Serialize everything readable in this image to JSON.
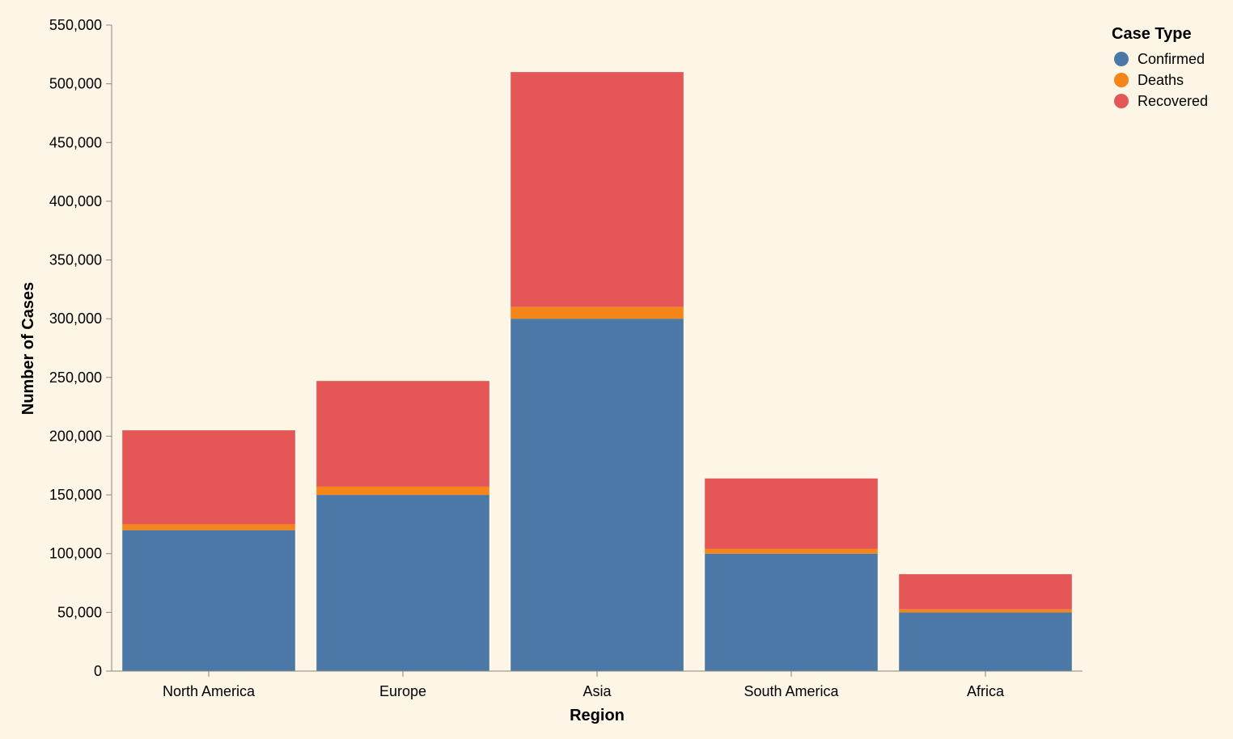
{
  "chart_data": {
    "type": "bar",
    "stacked": true,
    "categories": [
      "North America",
      "Europe",
      "Asia",
      "South America",
      "Africa"
    ],
    "series": [
      {
        "name": "Confirmed",
        "values": [
          120000,
          150000,
          300000,
          100000,
          50000
        ],
        "color": "#4c78a8"
      },
      {
        "name": "Deaths",
        "values": [
          5000,
          7000,
          10000,
          4000,
          2500
        ],
        "color": "#f58518"
      },
      {
        "name": "Recovered",
        "values": [
          80000,
          90000,
          200000,
          60000,
          30000
        ],
        "color": "#e45756"
      }
    ],
    "xlabel": "Region",
    "ylabel": "Number of Cases",
    "ylim": [
      0,
      550000
    ],
    "yticks": [
      0,
      50000,
      100000,
      150000,
      200000,
      250000,
      300000,
      350000,
      400000,
      450000,
      500000,
      550000
    ],
    "grid": false,
    "legend": {
      "title": "Case Type",
      "position": "top-right"
    },
    "background": "#fdf5e6"
  }
}
